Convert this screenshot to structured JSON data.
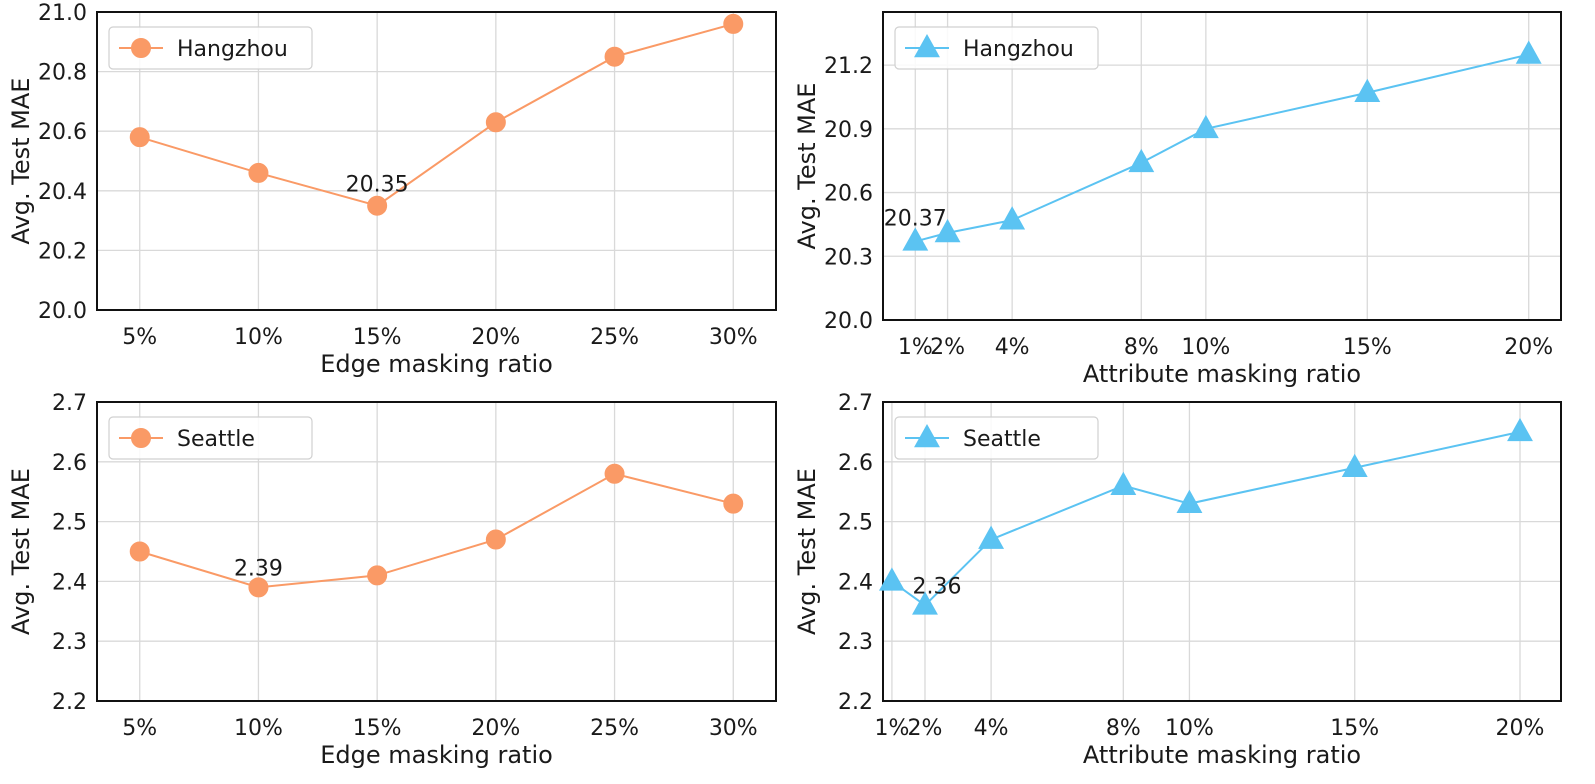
{
  "chart_data": [
    {
      "type": "line",
      "title": "",
      "xlabel": "Edge masking ratio",
      "ylabel": "Avg. Test MAE",
      "x": [
        5,
        10,
        15,
        20,
        25,
        30
      ],
      "x_tick_labels": [
        "5%",
        "10%",
        "15%",
        "20%",
        "25%",
        "30%"
      ],
      "ylim": [
        20.0,
        21.0
      ],
      "y_ticks": [
        20.0,
        20.2,
        20.4,
        20.6,
        20.8,
        21.0
      ],
      "y_tick_labels": [
        "20.0",
        "20.2",
        "20.4",
        "20.6",
        "20.8",
        "21.0"
      ],
      "series": [
        {
          "name": "Hangzhou",
          "marker": "circle",
          "color": "#FA9A66",
          "values": [
            20.58,
            20.46,
            20.35,
            20.63,
            20.85,
            20.96
          ]
        }
      ],
      "annotation": {
        "index": 2,
        "text": "20.35"
      },
      "grid": true,
      "legend": "top-left"
    },
    {
      "type": "line",
      "title": "",
      "xlabel": "Attribute masking ratio",
      "ylabel": "Avg. Test MAE",
      "x": [
        1,
        2,
        4,
        8,
        10,
        15,
        20
      ],
      "x_tick_labels": [
        "1%",
        "2%",
        "4%",
        "8%",
        "10%",
        "15%",
        "20%"
      ],
      "ylim": [
        20.0,
        21.45
      ],
      "y_ticks": [
        20.0,
        20.3,
        20.6,
        20.9,
        21.2
      ],
      "y_tick_labels": [
        "20.0",
        "20.3",
        "20.6",
        "20.9",
        "21.2"
      ],
      "series": [
        {
          "name": "Hangzhou",
          "marker": "triangle",
          "color": "#5BC3F2",
          "values": [
            20.37,
            20.41,
            20.47,
            20.74,
            20.9,
            21.07,
            21.25
          ]
        }
      ],
      "annotation": {
        "index": 0,
        "text": "20.37"
      },
      "grid": true,
      "legend": "top-left"
    },
    {
      "type": "line",
      "title": "",
      "xlabel": "Edge masking ratio",
      "ylabel": "Avg. Test MAE",
      "x": [
        5,
        10,
        15,
        20,
        25,
        30
      ],
      "x_tick_labels": [
        "5%",
        "10%",
        "15%",
        "20%",
        "25%",
        "30%"
      ],
      "ylim": [
        2.2,
        2.7
      ],
      "y_ticks": [
        2.2,
        2.3,
        2.4,
        2.5,
        2.6,
        2.7
      ],
      "y_tick_labels": [
        "2.2",
        "2.3",
        "2.4",
        "2.5",
        "2.6",
        "2.7"
      ],
      "series": [
        {
          "name": "Seattle",
          "marker": "circle",
          "color": "#FA9A66",
          "values": [
            2.45,
            2.39,
            2.41,
            2.47,
            2.58,
            2.53
          ]
        }
      ],
      "annotation": {
        "index": 1,
        "text": "2.39"
      },
      "grid": true,
      "legend": "top-left"
    },
    {
      "type": "line",
      "title": "",
      "xlabel": "Attribute masking ratio",
      "ylabel": "Avg. Test MAE",
      "x": [
        1,
        2,
        4,
        8,
        10,
        15,
        20
      ],
      "x_tick_labels": [
        "1%",
        "2%",
        "4%",
        "8%",
        "10%",
        "15%",
        "20%"
      ],
      "ylim": [
        2.2,
        2.7
      ],
      "y_ticks": [
        2.2,
        2.3,
        2.4,
        2.5,
        2.6,
        2.7
      ],
      "y_tick_labels": [
        "2.2",
        "2.3",
        "2.4",
        "2.5",
        "2.6",
        "2.7"
      ],
      "series": [
        {
          "name": "Seattle",
          "marker": "triangle",
          "color": "#5BC3F2",
          "values": [
            2.4,
            2.36,
            2.47,
            2.56,
            2.53,
            2.59,
            2.65
          ]
        }
      ],
      "annotation": {
        "index": 1,
        "text": "2.36"
      },
      "grid": true,
      "legend": "top-left"
    }
  ]
}
